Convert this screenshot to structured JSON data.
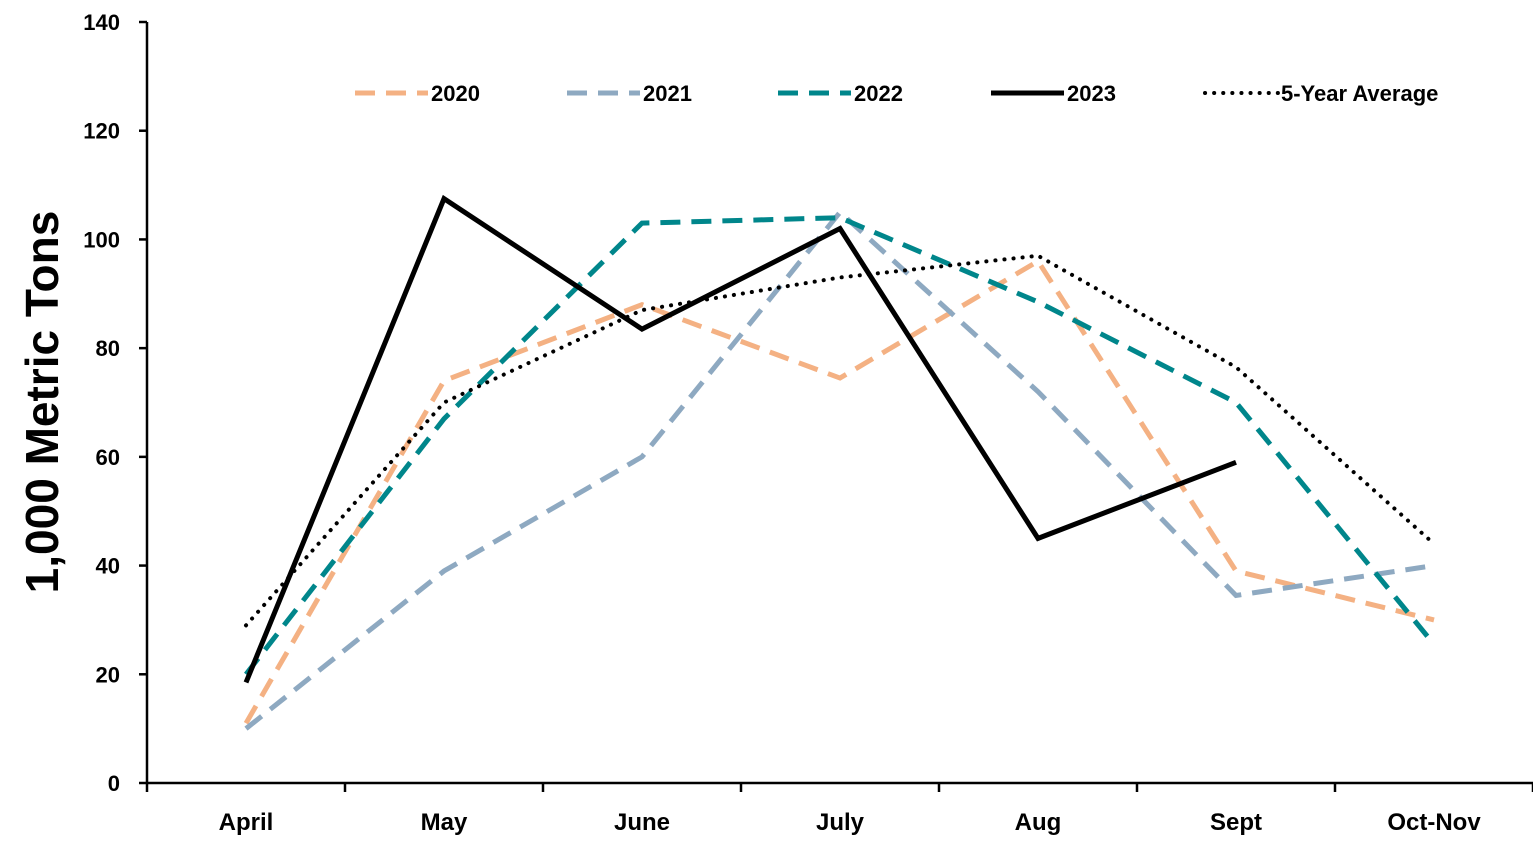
{
  "chart_data": {
    "type": "line",
    "title": "",
    "xlabel": "",
    "ylabel": "1,000 Metric Tons",
    "ylim": [
      0,
      140
    ],
    "yticks": [
      0,
      20,
      40,
      60,
      80,
      100,
      120,
      140
    ],
    "categories": [
      "April",
      "May",
      "June",
      "July",
      "Aug",
      "Sept",
      "Oct-Nov"
    ],
    "grid": false,
    "legend_position": "top",
    "series": [
      {
        "name": "2020",
        "color": "#F4B183",
        "style": "dashed",
        "values": [
          11,
          74,
          88,
          74.5,
          96,
          39,
          30
        ]
      },
      {
        "name": "2021",
        "color": "#8EA9C1",
        "style": "dashed",
        "values": [
          10,
          39,
          60,
          105,
          72,
          34.5,
          40
        ]
      },
      {
        "name": "2022",
        "color": "#00868B",
        "style": "dashed",
        "values": [
          20,
          67,
          103,
          104,
          88.5,
          70,
          25.5
        ]
      },
      {
        "name": "2023",
        "color": "#000000",
        "style": "solid",
        "values": [
          18.5,
          107.5,
          83.5,
          102,
          45,
          59,
          null
        ]
      },
      {
        "name": "5-Year Average",
        "color": "#000000",
        "style": "dotted",
        "values": [
          29,
          70,
          87,
          93,
          97,
          76.5,
          44
        ]
      }
    ]
  }
}
